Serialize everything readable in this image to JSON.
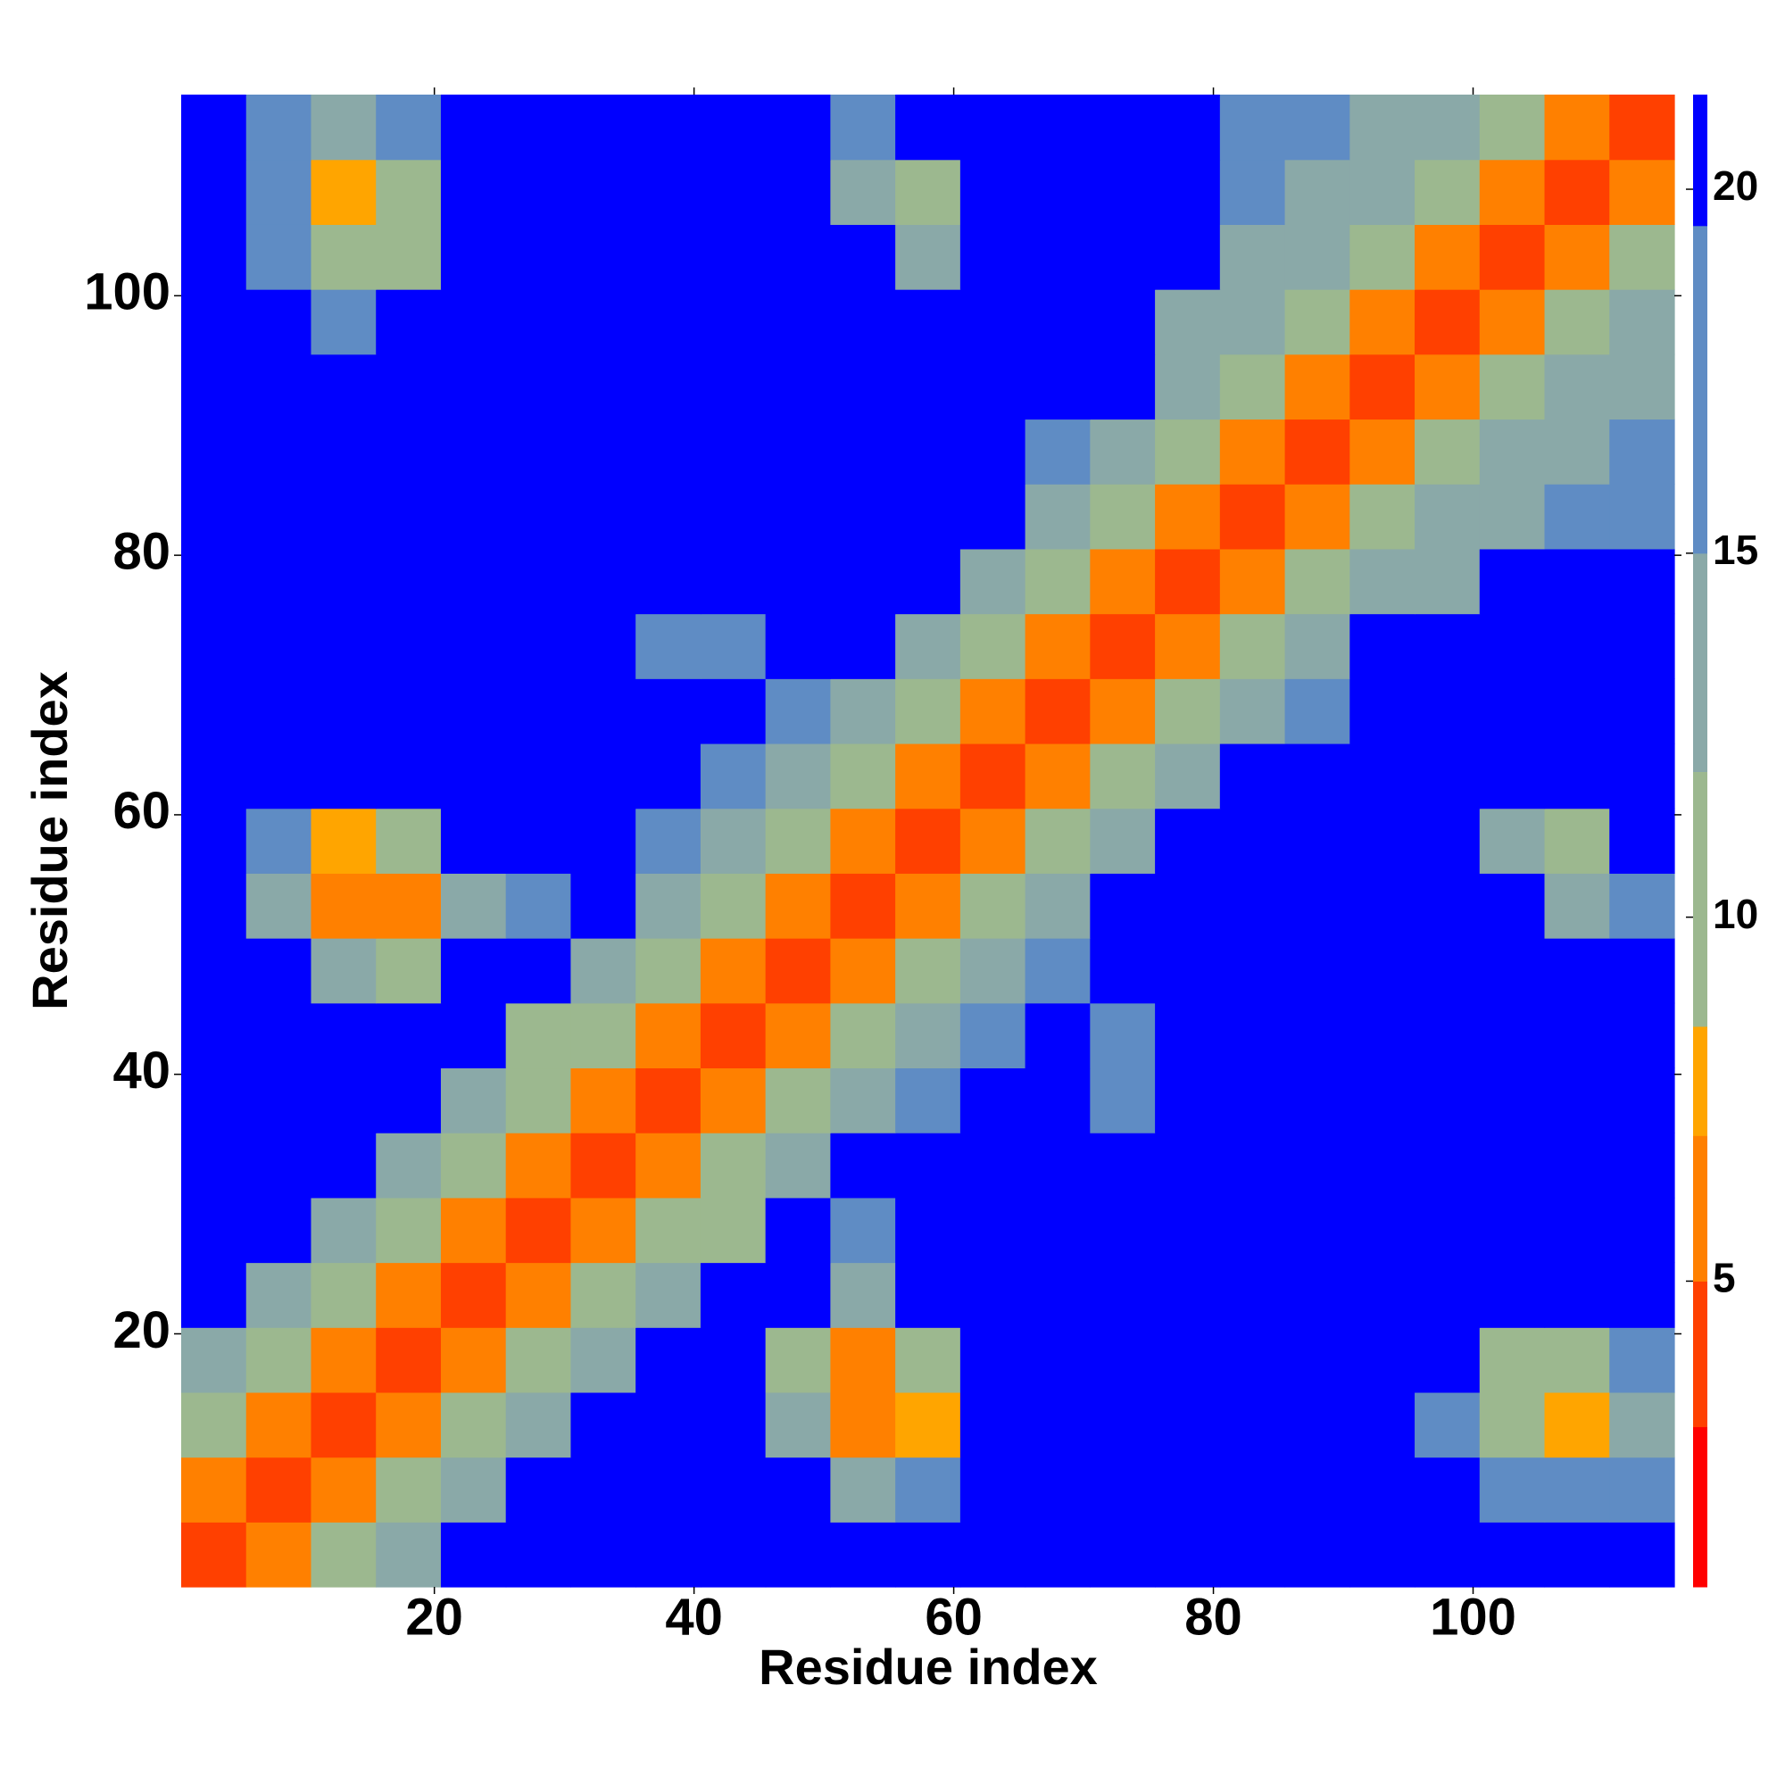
{
  "chart_data": {
    "type": "heatmap",
    "xlabel": "Residue index",
    "ylabel": "Residue index",
    "xlim": [
      0.5,
      115.5
    ],
    "ylim": [
      0.5,
      115.5
    ],
    "xticks": [
      20,
      40,
      60,
      80,
      100
    ],
    "yticks": [
      20,
      40,
      60,
      80,
      100
    ],
    "xbins": [
      0.5,
      5.5,
      10.5,
      15.5,
      20.5,
      25.5,
      30.5,
      35.5,
      40.5,
      45.5,
      50.5,
      55.5,
      60.5,
      65.5,
      70.5,
      75.5,
      80.5,
      85.5,
      90.5,
      95.5,
      100.5,
      105.5,
      110.5,
      115.5
    ],
    "ybins": [
      0.5,
      5.5,
      10.5,
      15.5,
      20.5,
      25.5,
      30.5,
      35.5,
      40.5,
      45.5,
      50.5,
      55.5,
      60.5,
      65.5,
      70.5,
      75.5,
      80.5,
      85.5,
      90.5,
      95.5,
      100.5,
      105.5,
      110.5,
      115.5
    ],
    "z": [
      [
        3.5,
        7,
        11,
        15,
        21,
        21,
        21,
        21,
        21,
        21,
        21,
        21,
        21,
        21,
        21,
        21,
        21,
        21,
        21,
        21,
        21,
        21,
        21
      ],
      [
        7,
        3.5,
        7,
        11,
        15,
        21,
        21,
        21,
        21,
        21,
        15,
        16,
        21,
        21,
        21,
        21,
        21,
        21,
        21,
        21,
        17,
        16,
        17
      ],
      [
        11,
        7,
        3.5,
        7,
        11,
        15,
        21,
        21,
        21,
        14,
        6,
        8,
        21,
        21,
        21,
        21,
        21,
        21,
        21,
        17,
        9,
        8,
        15
      ],
      [
        15,
        11,
        7,
        3.5,
        7,
        11,
        15,
        21,
        21,
        12,
        6,
        12,
        21,
        21,
        21,
        21,
        21,
        21,
        21,
        21,
        12,
        9,
        16
      ],
      [
        21,
        15,
        11,
        7,
        3.5,
        7,
        11,
        15,
        21,
        21,
        15,
        21,
        21,
        21,
        21,
        21,
        21,
        21,
        21,
        21,
        21,
        21,
        21
      ],
      [
        21,
        21,
        15,
        11,
        7,
        3.5,
        7,
        11,
        10,
        21,
        16,
        21,
        21,
        21,
        21,
        21,
        21,
        21,
        21,
        21,
        21,
        21,
        21
      ],
      [
        21,
        21,
        21,
        15,
        11,
        7,
        3.5,
        7,
        11,
        15,
        21,
        21,
        21,
        21,
        21,
        21,
        21,
        21,
        21,
        21,
        21,
        21,
        21
      ],
      [
        21,
        21,
        21,
        21,
        15,
        11,
        7,
        3.5,
        7,
        11,
        15,
        17,
        21,
        21,
        17,
        21,
        21,
        21,
        21,
        21,
        21,
        21,
        21
      ],
      [
        21,
        21,
        21,
        21,
        21,
        10,
        11,
        7,
        3.5,
        7,
        11,
        15,
        17,
        21,
        17,
        21,
        21,
        21,
        21,
        21,
        21,
        21,
        21
      ],
      [
        21,
        21,
        14,
        12,
        21,
        21,
        15,
        11,
        7,
        3.5,
        7,
        11,
        15,
        18,
        21,
        21,
        21,
        21,
        21,
        21,
        21,
        21,
        21
      ],
      [
        21,
        15,
        6,
        6,
        15,
        16,
        21,
        15,
        11,
        7,
        3.5,
        7,
        11,
        15,
        21,
        21,
        21,
        21,
        21,
        21,
        21,
        14,
        17
      ],
      [
        21,
        16,
        8,
        12,
        21,
        21,
        21,
        17,
        15,
        11,
        7,
        3.5,
        7,
        11,
        15,
        21,
        21,
        21,
        21,
        21,
        15,
        10,
        21
      ],
      [
        21,
        21,
        21,
        21,
        21,
        21,
        21,
        21,
        17,
        15,
        11,
        7,
        3.5,
        7,
        11,
        15,
        21,
        21,
        21,
        21,
        21,
        21,
        21
      ],
      [
        21,
        21,
        21,
        21,
        21,
        21,
        21,
        21,
        21,
        18,
        15,
        11,
        7,
        3.5,
        7,
        11,
        15,
        16,
        21,
        21,
        21,
        21,
        21
      ],
      [
        21,
        21,
        21,
        21,
        21,
        21,
        21,
        17,
        17,
        21,
        21,
        15,
        11,
        7,
        3.5,
        7,
        11,
        15,
        21,
        21,
        21,
        21,
        21
      ],
      [
        21,
        21,
        21,
        21,
        21,
        21,
        21,
        21,
        21,
        21,
        21,
        21,
        15,
        11,
        7,
        3.5,
        7,
        11,
        15,
        15,
        21,
        21,
        21
      ],
      [
        21,
        21,
        21,
        21,
        21,
        21,
        21,
        21,
        21,
        21,
        21,
        21,
        21,
        15,
        11,
        7,
        3.5,
        7,
        11,
        15,
        15,
        17,
        17
      ],
      [
        21,
        21,
        21,
        21,
        21,
        21,
        21,
        21,
        21,
        21,
        21,
        21,
        21,
        16,
        15,
        11,
        7,
        3.5,
        7,
        11,
        15,
        15,
        17
      ],
      [
        21,
        21,
        21,
        21,
        21,
        21,
        21,
        21,
        21,
        21,
        21,
        21,
        21,
        21,
        21,
        15,
        11,
        7,
        3.5,
        7,
        11,
        15,
        15
      ],
      [
        21,
        21,
        17,
        21,
        21,
        21,
        21,
        21,
        21,
        21,
        21,
        21,
        21,
        21,
        21,
        15,
        15,
        11,
        7,
        3.5,
        7,
        11,
        15
      ],
      [
        21,
        17,
        9,
        12,
        21,
        21,
        21,
        21,
        21,
        21,
        21,
        15,
        21,
        21,
        21,
        21,
        15,
        15,
        11,
        7,
        3.5,
        7,
        11
      ],
      [
        21,
        16,
        8,
        9,
        21,
        21,
        21,
        21,
        21,
        21,
        14,
        10,
        21,
        21,
        21,
        21,
        17,
        15,
        15,
        11,
        7,
        3.5,
        7
      ],
      [
        21,
        17,
        15,
        16,
        21,
        21,
        21,
        21,
        21,
        21,
        17,
        21,
        21,
        21,
        21,
        21,
        17,
        17,
        15,
        15,
        11,
        7,
        3.5
      ]
    ],
    "zlim": [
      0.8,
      21.3
    ],
    "zticks": [
      5,
      10,
      15,
      20
    ],
    "colorscale": [
      [
        3,
        "#ff0000"
      ],
      [
        5,
        "#ff4000"
      ],
      [
        7,
        "#ff8000"
      ],
      [
        8.5,
        "#ffa500"
      ],
      [
        12,
        "#9cb88f"
      ],
      [
        15,
        "#8aa9a8"
      ],
      [
        19.5,
        "#5f8cc4"
      ],
      [
        21.3,
        "#0000ff"
      ]
    ]
  }
}
